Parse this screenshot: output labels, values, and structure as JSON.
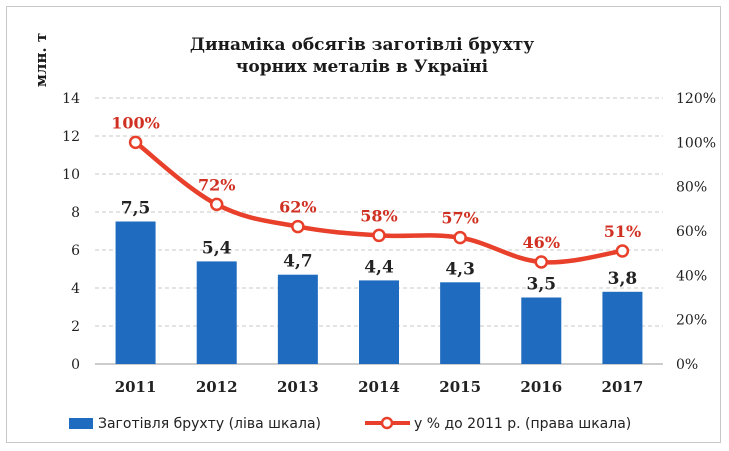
{
  "chart_data": {
    "type": "bar+line",
    "title_line1": "Динаміка обсягів заготівлі брухту",
    "title_line2": "чорних металів в Україні",
    "ylabel": "млн. т",
    "categories": [
      "2011",
      "2012",
      "2013",
      "2014",
      "2015",
      "2016",
      "2017"
    ],
    "bar_series": {
      "name": "Заготівля брухту (ліва шкала)",
      "values": [
        7.5,
        5.4,
        4.7,
        4.4,
        4.3,
        3.5,
        3.8
      ],
      "labels": [
        "7,5",
        "5,4",
        "4,7",
        "4,4",
        "4,3",
        "3,5",
        "3,8"
      ],
      "color": "#1f6bbf"
    },
    "line_series": {
      "name": "у % до 2011 р. (права шкала)",
      "values": [
        100,
        72,
        62,
        58,
        57,
        46,
        51
      ],
      "labels": [
        "100%",
        "72%",
        "62%",
        "58%",
        "57%",
        "46%",
        "51%"
      ],
      "color": "#e8402a"
    },
    "left_axis": {
      "min": 0,
      "max": 14,
      "ticks": [
        "0",
        "2",
        "4",
        "6",
        "8",
        "10",
        "12",
        "14"
      ]
    },
    "right_axis": {
      "min": 0,
      "max": 120,
      "ticks": [
        "0%",
        "20%",
        "40%",
        "60%",
        "80%",
        "100%",
        "120%"
      ]
    },
    "grid": "dashed-horizontal",
    "legend_position": "bottom"
  }
}
